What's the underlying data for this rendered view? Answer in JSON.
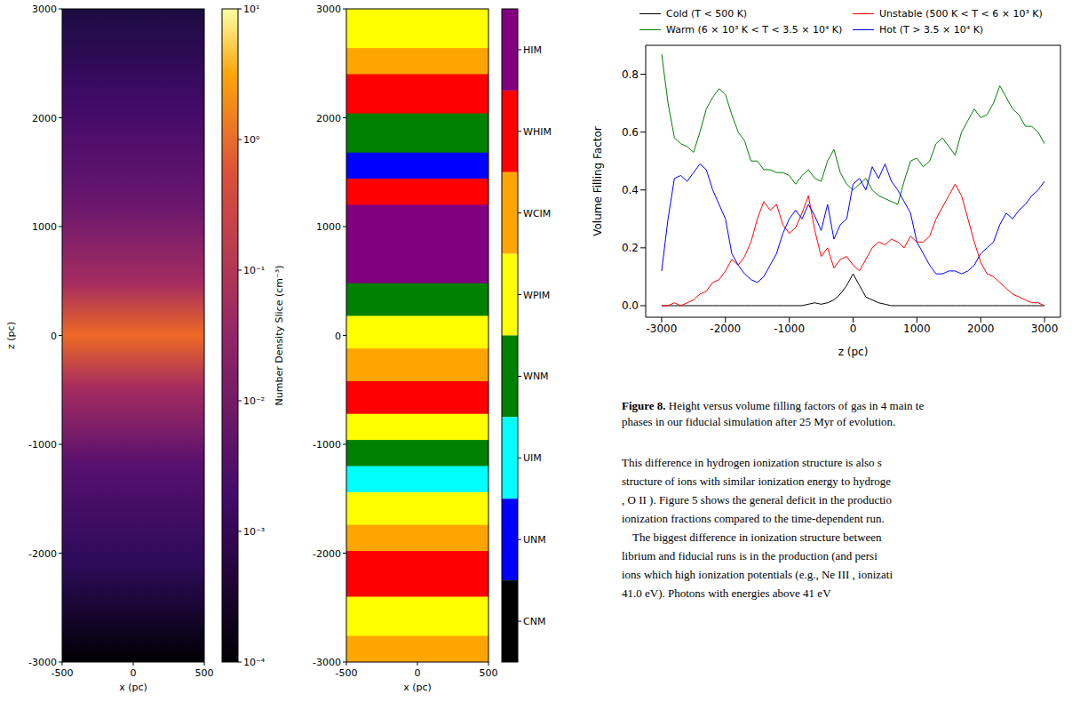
{
  "panels": [
    {
      "type": "image",
      "xlabel": "x (pc)",
      "ylabel": "z (pc)",
      "xlim": [
        -500,
        500
      ],
      "xticks": [
        -500,
        0,
        500
      ],
      "ylim": [
        -3000,
        3000
      ],
      "yticks": [
        -3000,
        -2000,
        -1000,
        0,
        1000,
        2000,
        3000
      ],
      "colorbar": {
        "label": "Number Density Slice (cm⁻³)",
        "log": true,
        "range": [
          0.0001,
          10
        ],
        "ticks": [
          {
            "value": 10,
            "label": "10¹"
          },
          {
            "value": 1,
            "label": "10⁰"
          },
          {
            "value": 0.1,
            "label": "10⁻¹"
          },
          {
            "value": 0.01,
            "label": "10⁻²"
          },
          {
            "value": 0.001,
            "label": "10⁻³"
          },
          {
            "value": 0.0001,
            "label": "10⁻⁴"
          }
        ]
      }
    },
    {
      "type": "image",
      "xlabel": "x (pc)",
      "xlim": [
        -500,
        500
      ],
      "xticks": [
        -500,
        0,
        500
      ],
      "ylim": [
        -3000,
        3000
      ],
      "yticks": [
        -3000,
        -2000,
        -1000,
        0,
        1000,
        2000,
        3000
      ],
      "colorbar": {
        "categories": [
          "HIM",
          "WHIM",
          "WCIM",
          "WPIM",
          "WNM",
          "UIM",
          "UNM",
          "CNM"
        ],
        "colors": [
          "#800080",
          "#ff0000",
          "#ffa500",
          "#ffff00",
          "#008000",
          "#00ffff",
          "#0000ff",
          "#000000"
        ]
      }
    }
  ],
  "chart_data": {
    "type": "line",
    "xlabel": "z (pc)",
    "ylabel": "Volume Filling Factor",
    "legend": "top",
    "xlim": [
      -3250,
      3250
    ],
    "xticks": [
      -3000,
      -2000,
      -1000,
      0,
      1000,
      2000,
      3000
    ],
    "ylim": [
      -0.04,
      0.9
    ],
    "yticks": [
      {
        "value": 0,
        "label": "0.0"
      },
      {
        "value": 0.2,
        "label": "0.2"
      },
      {
        "value": 0.4,
        "label": "0.4"
      },
      {
        "value": 0.6,
        "label": "0.6"
      },
      {
        "value": 0.8,
        "label": "0.8"
      }
    ],
    "x": [
      -3000,
      -2900,
      -2800,
      -2700,
      -2600,
      -2500,
      -2400,
      -2300,
      -2200,
      -2100,
      -2000,
      -1900,
      -1800,
      -1700,
      -1600,
      -1500,
      -1400,
      -1300,
      -1200,
      -1100,
      -1000,
      -900,
      -800,
      -700,
      -600,
      -500,
      -400,
      -300,
      -200,
      -100,
      0,
      100,
      200,
      300,
      400,
      500,
      600,
      700,
      800,
      900,
      1000,
      1100,
      1200,
      1300,
      1400,
      1500,
      1600,
      1700,
      1800,
      1900,
      2000,
      2100,
      2200,
      2300,
      2400,
      2500,
      2600,
      2700,
      2800,
      2900,
      3000
    ],
    "series": [
      {
        "name": "Cold (T < 500 K)",
        "color": "#000000",
        "values": [
          0,
          0,
          0,
          0,
          0,
          0,
          0,
          0,
          0,
          0,
          0,
          0,
          0,
          0,
          0,
          0,
          0,
          0,
          0,
          0,
          0,
          0,
          0,
          0.005,
          0.01,
          0.005,
          0.01,
          0.02,
          0.04,
          0.07,
          0.11,
          0.07,
          0.03,
          0.02,
          0.01,
          0.005,
          0,
          0,
          0,
          0,
          0,
          0,
          0,
          0,
          0,
          0,
          0,
          0,
          0,
          0,
          0,
          0,
          0,
          0,
          0,
          0,
          0,
          0,
          0,
          0,
          0
        ]
      },
      {
        "name": "Unstable (500 K < T < 6 × 10³ K)",
        "color": "#ff0000",
        "values": [
          0,
          0,
          0.01,
          0,
          0.01,
          0.02,
          0.04,
          0.05,
          0.08,
          0.09,
          0.12,
          0.16,
          0.14,
          0.17,
          0.22,
          0.3,
          0.36,
          0.33,
          0.35,
          0.28,
          0.25,
          0.27,
          0.32,
          0.38,
          0.26,
          0.17,
          0.2,
          0.13,
          0.16,
          0.17,
          0.14,
          0.12,
          0.16,
          0.2,
          0.22,
          0.21,
          0.23,
          0.22,
          0.2,
          0.24,
          0.22,
          0.22,
          0.24,
          0.3,
          0.34,
          0.38,
          0.42,
          0.38,
          0.3,
          0.22,
          0.15,
          0.11,
          0.1,
          0.08,
          0.06,
          0.04,
          0.03,
          0.02,
          0.01,
          0.01,
          0
        ]
      },
      {
        "name": "Warm (6 × 10³ K < T < 3.5 × 10⁴ K)",
        "color": "#008000",
        "values": [
          0.87,
          0.7,
          0.58,
          0.56,
          0.55,
          0.53,
          0.6,
          0.68,
          0.72,
          0.75,
          0.73,
          0.66,
          0.6,
          0.57,
          0.5,
          0.5,
          0.47,
          0.47,
          0.46,
          0.46,
          0.45,
          0.42,
          0.45,
          0.47,
          0.44,
          0.43,
          0.5,
          0.54,
          0.46,
          0.42,
          0.4,
          0.42,
          0.44,
          0.4,
          0.38,
          0.37,
          0.36,
          0.35,
          0.43,
          0.5,
          0.51,
          0.48,
          0.5,
          0.56,
          0.58,
          0.55,
          0.52,
          0.6,
          0.64,
          0.68,
          0.65,
          0.66,
          0.7,
          0.76,
          0.72,
          0.68,
          0.66,
          0.62,
          0.62,
          0.6,
          0.56
        ]
      },
      {
        "name": "Hot (T > 3.5 × 10⁴ K)",
        "color": "#0000ff",
        "values": [
          0.12,
          0.3,
          0.44,
          0.45,
          0.43,
          0.46,
          0.49,
          0.47,
          0.4,
          0.35,
          0.3,
          0.18,
          0.14,
          0.11,
          0.09,
          0.08,
          0.1,
          0.14,
          0.18,
          0.25,
          0.3,
          0.33,
          0.3,
          0.35,
          0.31,
          0.26,
          0.35,
          0.23,
          0.28,
          0.3,
          0.42,
          0.44,
          0.4,
          0.48,
          0.44,
          0.49,
          0.43,
          0.4,
          0.36,
          0.32,
          0.22,
          0.18,
          0.14,
          0.11,
          0.11,
          0.12,
          0.12,
          0.11,
          0.12,
          0.14,
          0.18,
          0.2,
          0.22,
          0.28,
          0.32,
          0.3,
          0.33,
          0.35,
          0.38,
          0.4,
          0.43
        ]
      }
    ]
  },
  "caption": {
    "label": "Figure 8.",
    "lines": [
      "Height versus volume filling factors of gas in 4 main te",
      "phases in our fiducial simulation after 25 Myr of evolution."
    ]
  },
  "body": [
    "This difference in hydrogen ionization structure is also s",
    "structure of ions with similar ionization energy to hydroge",
    ", O II ). Figure 5 shows the general deficit in the productio",
    "ionization fractions compared to the time-dependent run.",
    "The biggest difference in ionization structure between",
    "librium and fiducial runs is in the production (and persi",
    "ions which high ionization potentials (e.g., Ne III , ionizati",
    "41.0 eV). Photons with energies above 41 eV"
  ]
}
